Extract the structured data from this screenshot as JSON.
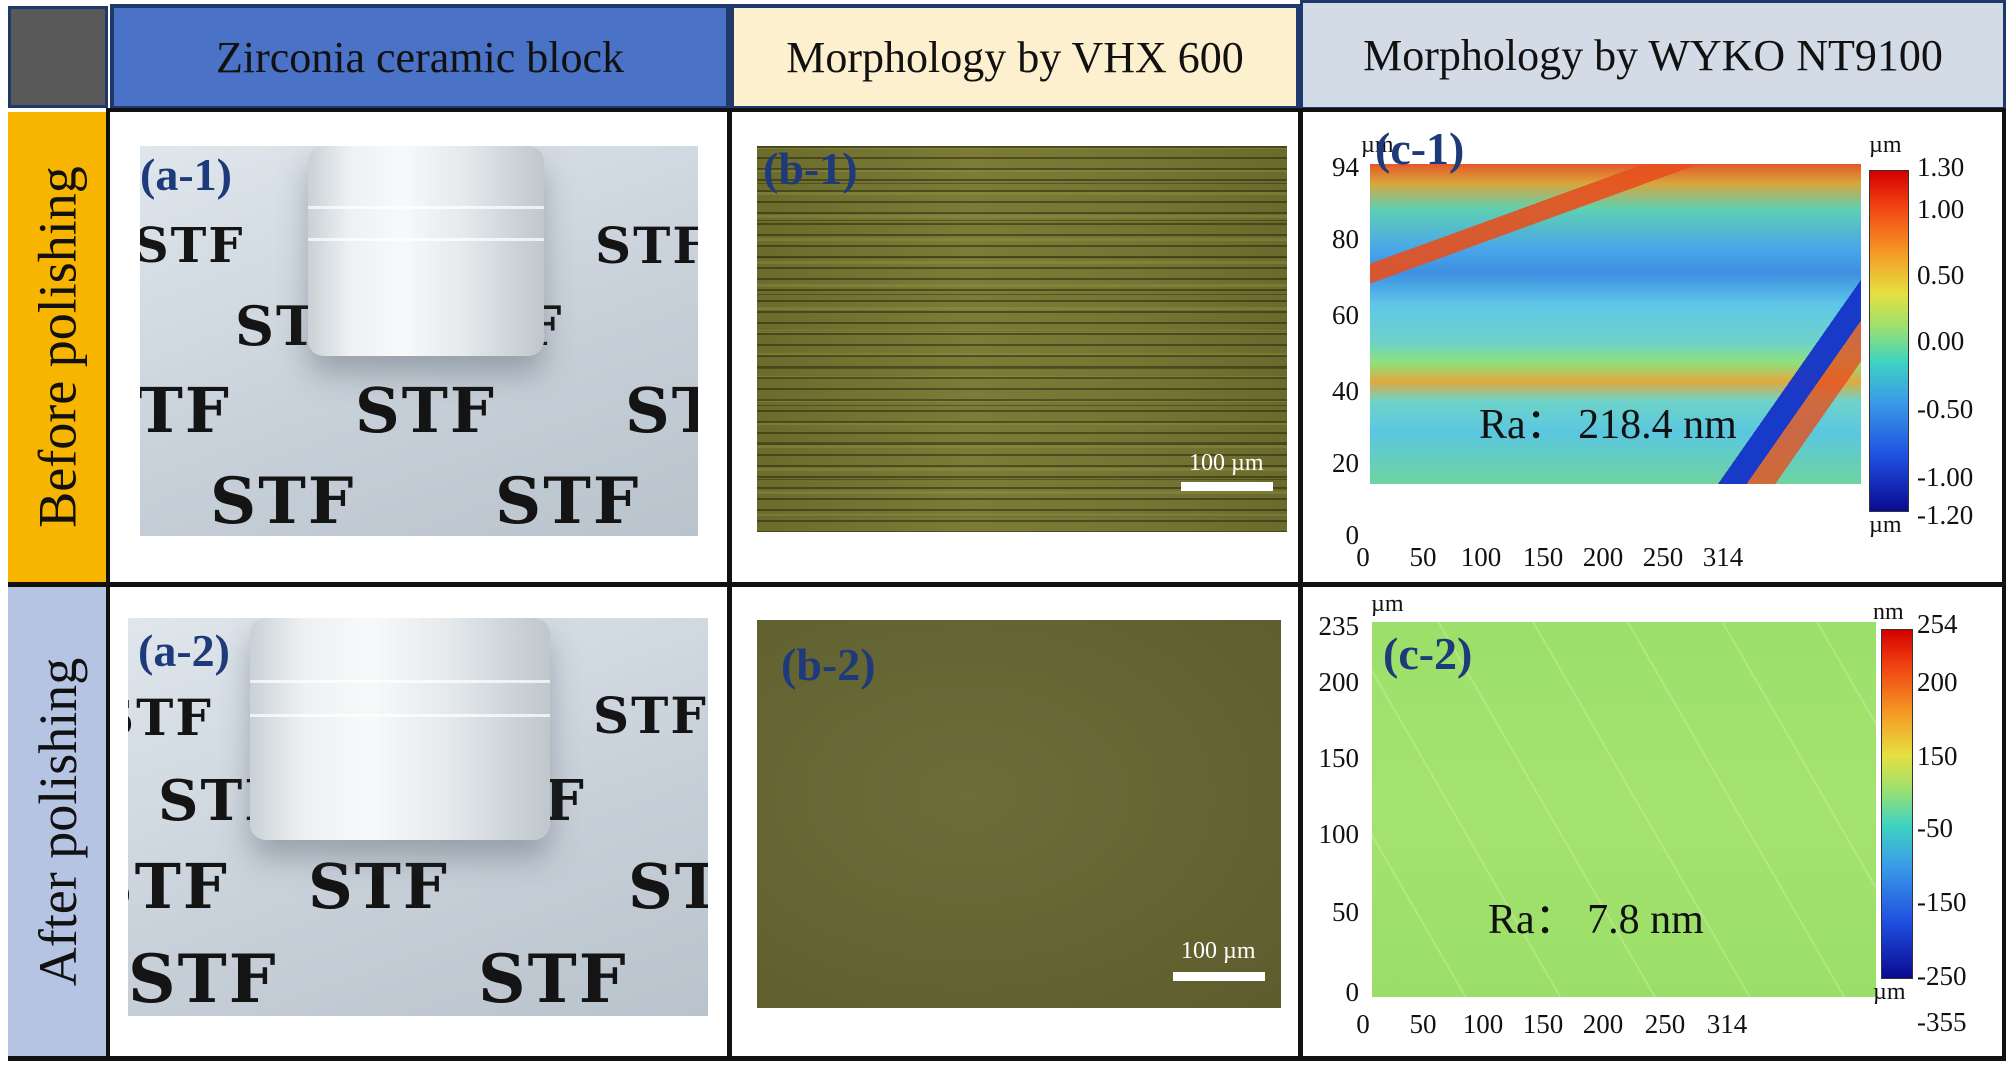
{
  "headers": {
    "col1": "Zirconia ceramic block",
    "col2": "Morphology by VHX 600",
    "col3": "Morphology by WYKO NT9100"
  },
  "rows": {
    "row1": "Before polishing",
    "row2": "After polishing"
  },
  "panels": {
    "a1": {
      "label": "(a-1)"
    },
    "a2": {
      "label": "(a-2)"
    },
    "b1": {
      "label": "(b-1)",
      "scale": "100 µm"
    },
    "b2": {
      "label": "(b-2)",
      "scale": "100 µm"
    },
    "c1": {
      "label": "(c-1)",
      "ra": "Ra： 218.4 nm",
      "y_unit": "µm",
      "y_ticks": [
        "94",
        "80",
        "60",
        "40",
        "20",
        "0"
      ],
      "x_ticks": [
        "0",
        "50",
        "100",
        "150",
        "200",
        "250",
        "314"
      ],
      "cb_unit_top": "µm",
      "cb_unit_bottom": "µm",
      "cb_ticks": [
        "1.30",
        "1.00",
        "0.50",
        "0.00",
        "-0.50",
        "-1.00",
        "-1.20"
      ]
    },
    "c2": {
      "label": "(c-2)",
      "ra": "Ra： 7.8 nm",
      "y_unit": "µm",
      "y_ticks": [
        "235",
        "200",
        "150",
        "100",
        "50",
        "0"
      ],
      "x_ticks": [
        "0",
        "50",
        "100",
        "150",
        "200",
        "250",
        "314"
      ],
      "cb_unit_top": "nm",
      "cb_unit_bottom": "µm",
      "cb_ticks": [
        "254",
        "200",
        "150",
        "-50",
        "-150",
        "-250",
        "-355"
      ]
    }
  },
  "photo_text": "STF",
  "colors": {
    "col1_header": "#4a72c6",
    "col2_header": "#fdf0cf",
    "col3_header": "#d3dbe6",
    "row1_label": "#f7b500",
    "row2_label": "#b6c4e4",
    "corner": "#595959",
    "panel_label": "#1f3a7a"
  }
}
